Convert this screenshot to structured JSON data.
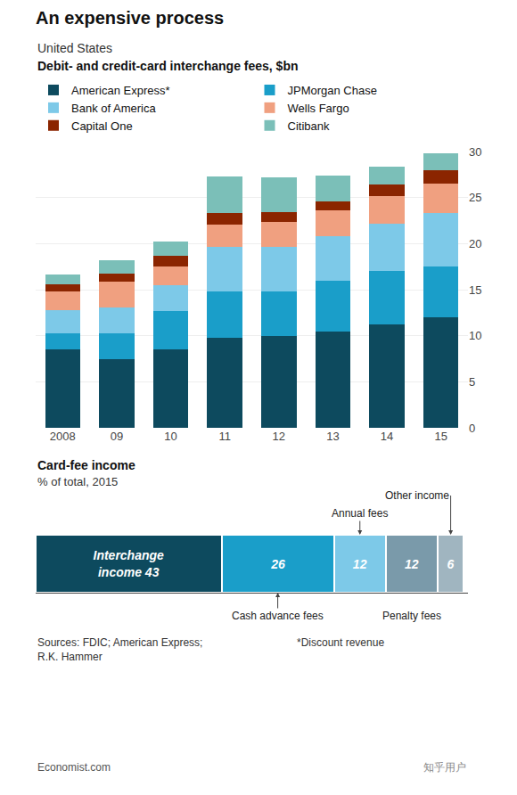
{
  "chart_data": [
    {
      "type": "bar",
      "stacked": true,
      "title": "An expensive process",
      "subtitle": "United States",
      "ylabel": "Debit- and credit-card interchange fees, $bn",
      "categories": [
        "2008",
        "09",
        "10",
        "11",
        "12",
        "13",
        "14",
        "15"
      ],
      "series": [
        {
          "name": "American Express*",
          "color": "#0d4a5e",
          "values": [
            8.5,
            7.5,
            8.5,
            9.8,
            10.0,
            10.5,
            11.2,
            12.0
          ]
        },
        {
          "name": "JPMorgan Chase",
          "color": "#1a9ec9",
          "values": [
            1.8,
            2.8,
            4.2,
            5.0,
            4.8,
            5.5,
            5.8,
            5.5
          ]
        },
        {
          "name": "Bank of America",
          "color": "#7dc9e8",
          "values": [
            2.5,
            2.8,
            2.8,
            4.8,
            4.8,
            4.8,
            5.2,
            5.8
          ]
        },
        {
          "name": "Wells Fargo",
          "color": "#f0a080",
          "values": [
            2.0,
            2.8,
            2.0,
            2.5,
            2.8,
            2.8,
            3.0,
            3.2
          ]
        },
        {
          "name": "Capital One",
          "color": "#8b2500",
          "values": [
            0.8,
            0.8,
            1.2,
            1.2,
            1.0,
            1.0,
            1.2,
            1.5
          ]
        },
        {
          "name": "Citibank",
          "color": "#7bbfb8",
          "values": [
            1.0,
            1.5,
            1.5,
            4.0,
            3.8,
            2.8,
            2.0,
            1.8
          ]
        }
      ],
      "ylim": [
        0,
        30
      ],
      "yticks": [
        0,
        5,
        10,
        15,
        20,
        25,
        30
      ],
      "grid": true,
      "legend": "top left"
    },
    {
      "type": "bar",
      "orientation": "horizontal",
      "stacked": true,
      "title": "Card-fee income",
      "subtitle": "% of total, 2015",
      "xlim": [
        0,
        100
      ],
      "tick_labels": false,
      "data_labels": true,
      "series": [
        {
          "color": "#0d4a5e",
          "values": [
            43
          ],
          "value_labels": [
            "Interchange\nincome 43"
          ]
        },
        {
          "name": "Cash advance fees",
          "color": "#1a9ec9",
          "values": [
            26
          ]
        },
        {
          "name": "Annual fees",
          "color": "#7dc9e8",
          "values": [
            12
          ]
        },
        {
          "name": "Penalty fees",
          "color": "#7a9aaa",
          "values": [
            12
          ]
        },
        {
          "name": "Other income",
          "color": "#a0b5c0",
          "values": [
            6
          ]
        }
      ],
      "annotations": [
        "Sources: FDIC; American Express;\nR.K. Hammer",
        "*Discount revenue",
        "Economist.com",
        "知乎用户"
      ]
    }
  ]
}
